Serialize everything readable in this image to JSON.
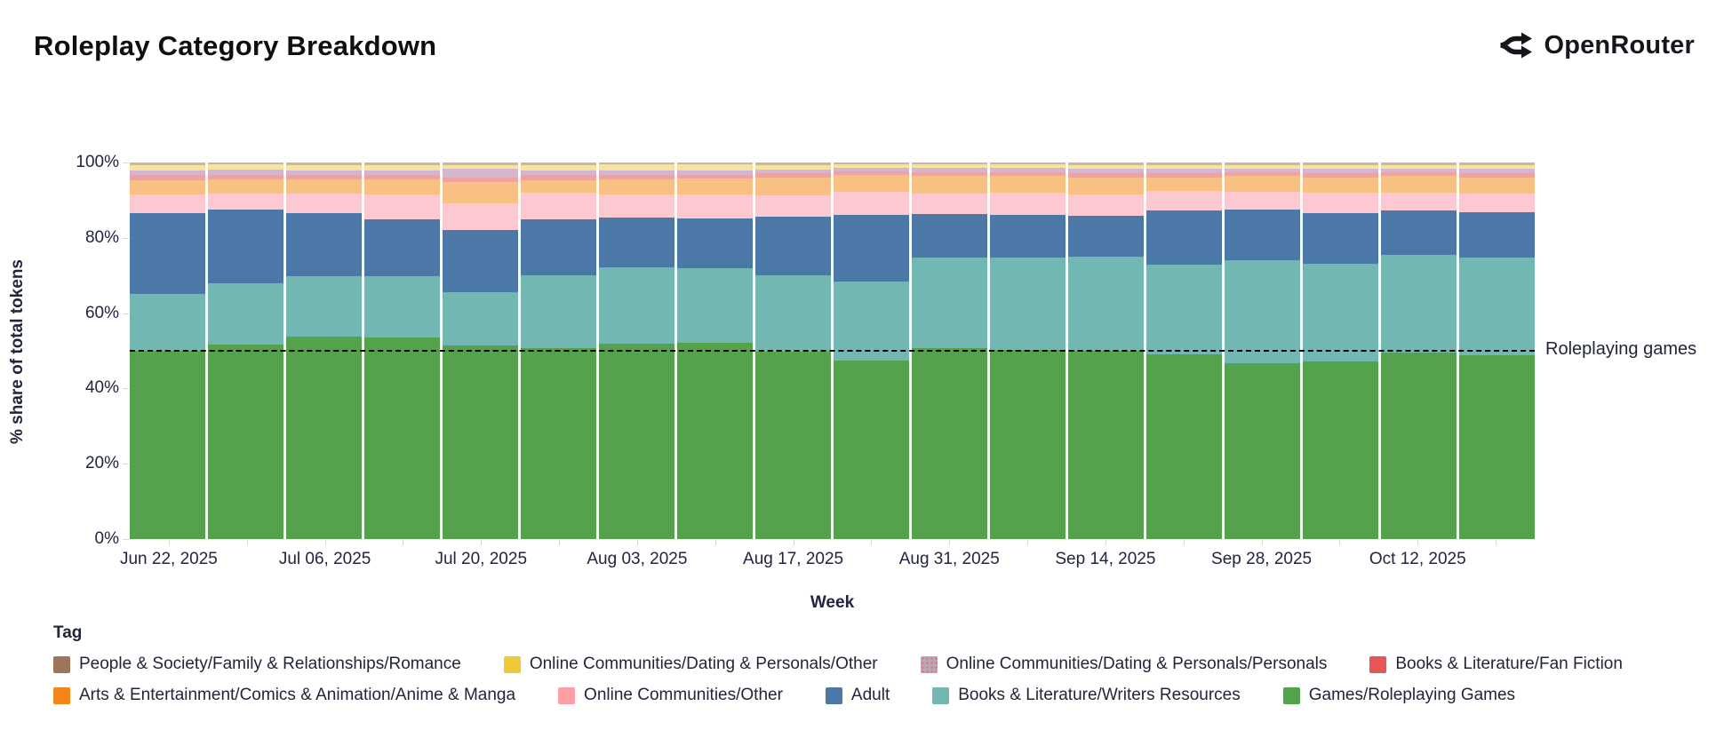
{
  "header": {
    "title": "Roleplay Category Breakdown",
    "brand": "OpenRouter"
  },
  "chart_data": {
    "type": "bar",
    "stacked": true,
    "unit": "percent of total",
    "title": "Roleplay Category Breakdown",
    "xlabel": "Week",
    "ylabel": "% share of total tokens",
    "ylim": [
      0,
      100
    ],
    "y_ticks": [
      "0%",
      "20%",
      "40%",
      "60%",
      "80%",
      "100%"
    ],
    "categories": [
      "Jun 22, 2025",
      "Jun 29, 2025",
      "Jul 06, 2025",
      "Jul 13, 2025",
      "Jul 20, 2025",
      "Jul 27, 2025",
      "Aug 03, 2025",
      "Aug 10, 2025",
      "Aug 17, 2025",
      "Aug 24, 2025",
      "Aug 31, 2025",
      "Sep 07, 2025",
      "Sep 14, 2025",
      "Sep 21, 2025",
      "Sep 28, 2025",
      "Oct 05, 2025",
      "Oct 12, 2025",
      "Oct 19, 2025"
    ],
    "x_tick_labels": [
      "Jun 22, 2025",
      "Jul 06, 2025",
      "Jul 20, 2025",
      "Aug 03, 2025",
      "Aug 17, 2025",
      "Aug 31, 2025",
      "Sep 14, 2025",
      "Sep 28, 2025",
      "Oct 12, 2025"
    ],
    "series": [
      {
        "name": "Games/Roleplaying Games",
        "color": "#54a24b",
        "values": [
          50.0,
          51.6,
          53.8,
          53.5,
          51.5,
          50.8,
          52.0,
          52.2,
          49.8,
          47.5,
          50.8,
          50.3,
          50.0,
          49.0,
          46.6,
          47.1,
          49.5,
          48.8
        ]
      },
      {
        "name": "Books & Literature/Writers Resources",
        "color": "#72b7b2",
        "values": [
          15.0,
          16.4,
          16.0,
          16.3,
          14.0,
          19.2,
          20.2,
          19.8,
          20.2,
          20.9,
          24.0,
          24.5,
          25.0,
          24.0,
          27.5,
          25.9,
          26.0,
          26.0
        ]
      },
      {
        "name": "Adult",
        "color": "#4c78a8",
        "values": [
          21.5,
          19.6,
          16.7,
          15.2,
          16.5,
          14.8,
          13.3,
          13.2,
          15.6,
          17.6,
          11.5,
          11.4,
          10.9,
          14.3,
          13.4,
          13.6,
          11.8,
          11.9
        ]
      },
      {
        "name": "Online Communities/Other",
        "color": "#fdc9d1",
        "values": [
          5.0,
          4.2,
          5.3,
          6.5,
          7.2,
          7.2,
          6.0,
          6.4,
          5.7,
          6.3,
          5.5,
          5.8,
          5.6,
          5.2,
          4.7,
          5.5,
          4.8,
          5.0
        ]
      },
      {
        "name": "Arts & Entertainment/Comics & Animation/Anime & Manga",
        "color": "#f8c183",
        "values": [
          3.8,
          3.8,
          3.7,
          4.0,
          5.6,
          3.4,
          4.1,
          4.1,
          4.7,
          4.5,
          4.7,
          4.4,
          4.4,
          3.5,
          4.2,
          3.9,
          4.3,
          4.3
        ]
      },
      {
        "name": "Books & Literature/Fan Fiction",
        "color": "#f0a2a2",
        "values": [
          1.3,
          1.2,
          1.2,
          1.2,
          1.3,
          1.2,
          1.2,
          1.1,
          1.2,
          0.9,
          1.0,
          1.0,
          1.3,
          1.2,
          1.0,
          1.2,
          1.0,
          1.2
        ]
      },
      {
        "name": "Online Communities/Dating & Personals/Personals",
        "color": "#d4b7cf",
        "values": [
          1.2,
          1.3,
          1.3,
          1.3,
          2.2,
          1.3,
          1.2,
          1.2,
          1.0,
          0.9,
          1.0,
          1.1,
          1.2,
          1.1,
          1.0,
          1.1,
          1.0,
          1.1
        ]
      },
      {
        "name": "Online Communities/Dating & Personals/Other",
        "color": "#f6e39e",
        "values": [
          1.6,
          1.4,
          1.4,
          1.4,
          1.1,
          1.5,
          1.5,
          1.5,
          1.2,
          0.9,
          1.0,
          1.1,
          1.0,
          1.1,
          1.0,
          1.1,
          1.0,
          1.0
        ]
      },
      {
        "name": "People & Society/Family & Relationships/Romance",
        "color": "#cbb6a4",
        "values": [
          0.6,
          0.5,
          0.6,
          0.6,
          0.6,
          0.6,
          0.5,
          0.5,
          0.6,
          0.5,
          0.5,
          0.4,
          0.6,
          0.6,
          0.6,
          0.6,
          0.6,
          0.7
        ]
      }
    ],
    "reference_line": {
      "y": 50,
      "label": "Roleplaying games",
      "style": "dashed",
      "color": "#000000"
    },
    "legend": {
      "title": "Tag",
      "rows": [
        [
          {
            "label": "People & Society/Family & Relationships/Romance",
            "color": "#9d755d"
          },
          {
            "label": "Online Communities/Dating & Personals/Other",
            "color": "#eeca3b"
          },
          {
            "label": "Online Communities/Dating & Personals/Personals",
            "color": "#b9a8b2",
            "pattern": "dots",
            "pattern_color": "#e0758a"
          },
          {
            "label": "Books & Literature/Fan Fiction",
            "color": "#e45756"
          }
        ],
        [
          {
            "label": "Arts & Entertainment/Comics & Animation/Anime & Manga",
            "color": "#f58518"
          },
          {
            "label": "Online Communities/Other",
            "color": "#ff9da6"
          },
          {
            "label": "Adult",
            "color": "#4c78a8"
          },
          {
            "label": "Books & Literature/Writers Resources",
            "color": "#72b7b2"
          },
          {
            "label": "Games/Roleplaying Games",
            "color": "#54a24b"
          }
        ]
      ]
    }
  }
}
